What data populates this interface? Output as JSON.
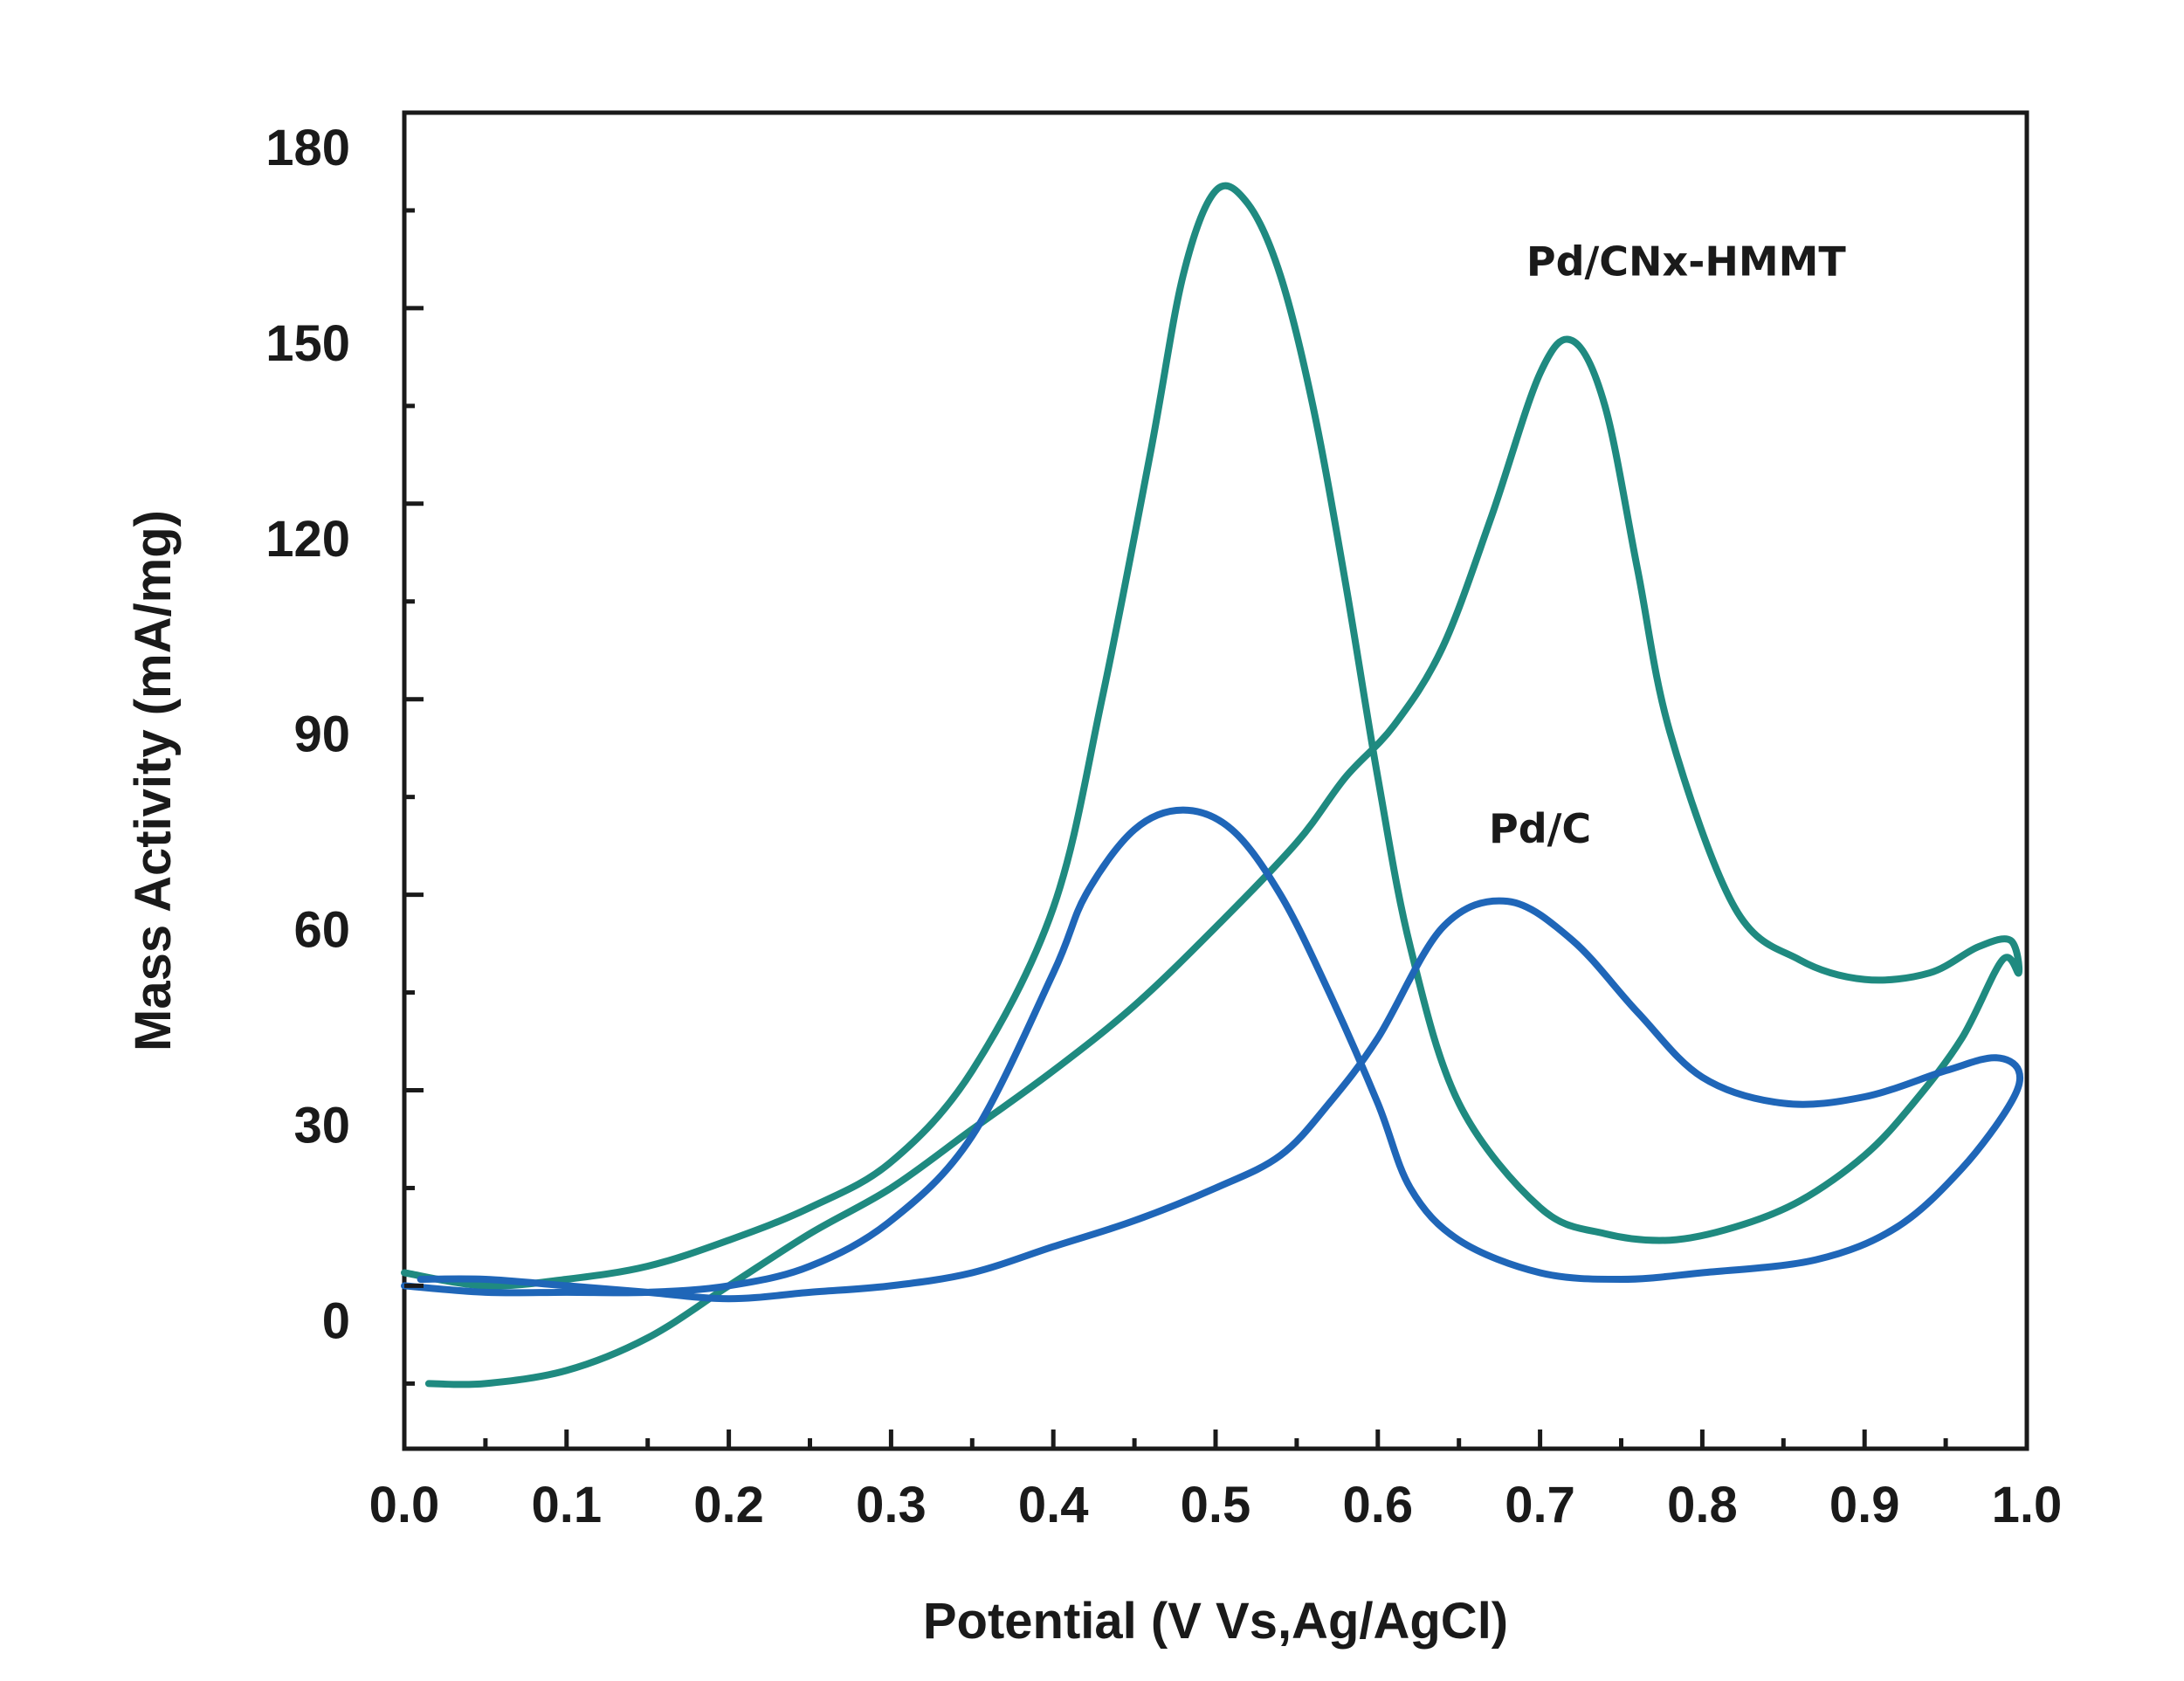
{
  "chart_data": {
    "type": "line",
    "title": "",
    "xlabel": "Potential (V Vs,Ag/AgCl)",
    "ylabel": "Mass Activity (mA/mg)",
    "xlim": [
      0.0,
      1.0
    ],
    "ylim": [
      -25,
      180
    ],
    "x_ticks": [
      "0.0",
      "0.1",
      "0.2",
      "0.3",
      "0.4",
      "0.5",
      "0.6",
      "0.7",
      "0.8",
      "0.9",
      "1.0"
    ],
    "x_tick_values": [
      0.0,
      0.1,
      0.2,
      0.3,
      0.4,
      0.5,
      0.6,
      0.7,
      0.8,
      0.9,
      1.0
    ],
    "y_ticks": [
      "0",
      "30",
      "60",
      "90",
      "120",
      "150",
      "180"
    ],
    "y_tick_values": [
      0,
      30,
      60,
      90,
      120,
      150,
      180
    ],
    "grid": false,
    "series": [
      {
        "name": "Pd/CNx-HMMT",
        "label_anchor": [
          0.79,
          155
        ],
        "color": "#1f8a80",
        "x": [
          0.0,
          0.05,
          0.1,
          0.15,
          0.2,
          0.25,
          0.3,
          0.35,
          0.4,
          0.43,
          0.46,
          0.48,
          0.5,
          0.52,
          0.54,
          0.56,
          0.58,
          0.6,
          0.62,
          0.65,
          0.7,
          0.74,
          0.78,
          0.82,
          0.86,
          0.9,
          0.93,
          0.96,
          0.985,
          0.995,
          0.99,
          0.97,
          0.94,
          0.9,
          0.86,
          0.82,
          0.78,
          0.76,
          0.74,
          0.72,
          0.7,
          0.67,
          0.64,
          0.61,
          0.58,
          0.55,
          0.5,
          0.45,
          0.4,
          0.35,
          0.3,
          0.25,
          0.2,
          0.15,
          0.1,
          0.05,
          0.015
        ],
        "y": [
          2,
          0,
          1,
          3,
          7,
          12,
          19,
          33,
          58,
          90,
          128,
          155,
          168,
          166,
          155,
          135,
          108,
          78,
          52,
          28,
          12,
          8,
          7,
          9,
          13,
          20,
          28,
          38,
          50,
          48,
          53,
          52,
          48,
          47,
          50,
          58,
          85,
          110,
          135,
          145,
          140,
          118,
          98,
          86,
          78,
          68,
          55,
          43,
          33,
          24,
          15,
          8,
          0,
          -8,
          -13,
          -15,
          -15
        ]
      },
      {
        "name": "Pd/C",
        "label_anchor": [
          0.7,
          68
        ],
        "color": "#1f66b8",
        "x": [
          0.0,
          0.05,
          0.1,
          0.15,
          0.2,
          0.25,
          0.3,
          0.35,
          0.4,
          0.42,
          0.45,
          0.48,
          0.51,
          0.54,
          0.57,
          0.6,
          0.62,
          0.65,
          0.7,
          0.75,
          0.8,
          0.87,
          0.92,
          0.96,
          0.99,
          0.995,
          0.98,
          0.95,
          0.9,
          0.85,
          0.8,
          0.76,
          0.72,
          0.68,
          0.64,
          0.6,
          0.57,
          0.54,
          0.5,
          0.45,
          0.4,
          0.35,
          0.3,
          0.25,
          0.2,
          0.15,
          0.1,
          0.05,
          0.01
        ],
        "y": [
          0,
          -1,
          -1,
          -1,
          0,
          3,
          10,
          23,
          48,
          60,
          70,
          73,
          70,
          60,
          45,
          28,
          15,
          7,
          2,
          1,
          2,
          4,
          9,
          18,
          28,
          33,
          35,
          33,
          29,
          28,
          32,
          42,
          53,
          59,
          55,
          38,
          28,
          20,
          15,
          10,
          6,
          2,
          0,
          -1,
          -2,
          -1,
          0,
          1,
          1
        ]
      }
    ]
  }
}
